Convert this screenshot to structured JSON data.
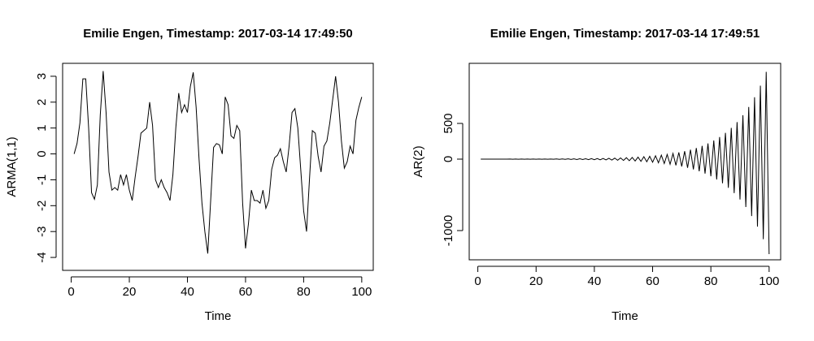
{
  "chart_data": [
    {
      "type": "line",
      "title": "Emilie Engen, Timestamp: 2017-03-14 17:49:50",
      "xlabel": "Time",
      "ylabel": "ARMA(1,1)",
      "x": [
        1,
        2,
        3,
        4,
        5,
        6,
        7,
        8,
        9,
        10,
        11,
        12,
        13,
        14,
        15,
        16,
        17,
        18,
        19,
        20,
        21,
        22,
        23,
        24,
        25,
        26,
        27,
        28,
        29,
        30,
        31,
        32,
        33,
        34,
        35,
        36,
        37,
        38,
        39,
        40,
        41,
        42,
        43,
        44,
        45,
        46,
        47,
        48,
        49,
        50,
        51,
        52,
        53,
        54,
        55,
        56,
        57,
        58,
        59,
        60,
        61,
        62,
        63,
        64,
        65,
        66,
        67,
        68,
        69,
        70,
        71,
        72,
        73,
        74,
        75,
        76,
        77,
        78,
        79,
        80,
        81,
        82,
        83,
        84,
        85,
        86,
        87,
        88,
        89,
        90,
        91,
        92,
        93,
        94,
        95,
        96,
        97,
        98,
        99,
        100
      ],
      "series": [
        {
          "name": "ARMA(1,1)",
          "color": "#000000",
          "values": [
            0,
            0.4,
            1.2,
            2.9,
            2.9,
            1.0,
            -1.5,
            -1.75,
            -1.2,
            1.5,
            3.2,
            1.6,
            -0.7,
            -1.4,
            -1.3,
            -1.4,
            -0.8,
            -1.2,
            -0.8,
            -1.4,
            -1.8,
            -0.9,
            -0.1,
            0.8,
            0.9,
            1.0,
            2.0,
            1.1,
            -1.0,
            -1.3,
            -1.0,
            -1.3,
            -1.5,
            -1.8,
            -0.8,
            1.0,
            2.35,
            1.6,
            1.9,
            1.6,
            2.6,
            3.15,
            1.8,
            -0.2,
            -1.9,
            -3.0,
            -3.85,
            -1.8,
            0.25,
            0.4,
            0.35,
            0.0,
            2.2,
            1.9,
            0.7,
            0.6,
            1.1,
            0.9,
            -1.9,
            -3.65,
            -2.7,
            -1.4,
            -1.8,
            -1.8,
            -1.9,
            -1.4,
            -2.1,
            -1.8,
            -0.6,
            -0.15,
            -0.05,
            0.2,
            -0.3,
            -0.7,
            0.3,
            1.6,
            1.75,
            1.0,
            -0.6,
            -2.2,
            -3.0,
            -1.0,
            0.9,
            0.8,
            -0.1,
            -0.7,
            0.3,
            0.5,
            1.2,
            2.1,
            3.0,
            2.0,
            0.5,
            -0.55,
            -0.3,
            0.3,
            0.0,
            1.3,
            1.8,
            2.2
          ]
        }
      ],
      "xlim": [
        -2.96,
        103.96
      ],
      "xticks": [
        0,
        20,
        40,
        60,
        80,
        100
      ],
      "ylim": [
        -4.5,
        3.5
      ],
      "yticks": [
        -4,
        -3,
        -2,
        -1,
        0,
        1,
        2,
        3
      ]
    },
    {
      "type": "line",
      "title": "Emilie Engen, Timestamp: 2017-03-14 17:49:51",
      "xlabel": "Time",
      "ylabel": "AR(2)",
      "x": [
        1,
        2,
        3,
        4,
        5,
        6,
        7,
        8,
        9,
        10,
        11,
        12,
        13,
        14,
        15,
        16,
        17,
        18,
        19,
        20,
        21,
        22,
        23,
        24,
        25,
        26,
        27,
        28,
        29,
        30,
        31,
        32,
        33,
        34,
        35,
        36,
        37,
        38,
        39,
        40,
        41,
        42,
        43,
        44,
        45,
        46,
        47,
        48,
        49,
        50,
        51,
        52,
        53,
        54,
        55,
        56,
        57,
        58,
        59,
        60,
        61,
        62,
        63,
        64,
        65,
        66,
        67,
        68,
        69,
        70,
        71,
        72,
        73,
        74,
        75,
        76,
        77,
        78,
        79,
        80,
        81,
        82,
        83,
        84,
        85,
        86,
        87,
        88,
        89,
        90,
        91,
        92,
        93,
        94,
        95,
        96,
        97,
        98,
        99,
        100
      ],
      "series": [
        {
          "name": "AR(2)",
          "color": "#000000",
          "values": [
            0.2,
            -0.3,
            0.3,
            -0.3,
            0.4,
            -0.4,
            0.4,
            -0.5,
            0.5,
            -0.6,
            1,
            -1,
            1,
            -1,
            1,
            -1,
            1,
            -1,
            1,
            -1,
            2,
            -2,
            2,
            -2,
            2,
            -2,
            3,
            -3,
            3,
            -3,
            4,
            -4,
            4,
            -5,
            5,
            -6,
            6,
            -7,
            7,
            -8,
            8,
            -9,
            10,
            -11,
            12,
            -13,
            14,
            -16,
            17,
            -18,
            20,
            -22,
            24,
            -26,
            28,
            -31,
            34,
            -37,
            40,
            -43,
            47,
            -51,
            56,
            -61,
            66,
            -72,
            79,
            -86,
            94,
            -102,
            111,
            -121,
            132,
            -144,
            156,
            -170,
            186,
            -202,
            220,
            -240,
            261,
            -285,
            310,
            -338,
            368,
            -401,
            437,
            -476,
            519,
            -565,
            615,
            -670,
            730,
            -796,
            867,
            -944,
            1029,
            -1121,
            1221,
            -1330
          ]
        }
      ],
      "xlim": [
        -2.96,
        103.96
      ],
      "xticks": [
        0,
        20,
        40,
        60,
        80,
        100
      ],
      "ylim": [
        -1409,
        1341
      ],
      "yticks": [
        -1000,
        0,
        500
      ]
    }
  ]
}
